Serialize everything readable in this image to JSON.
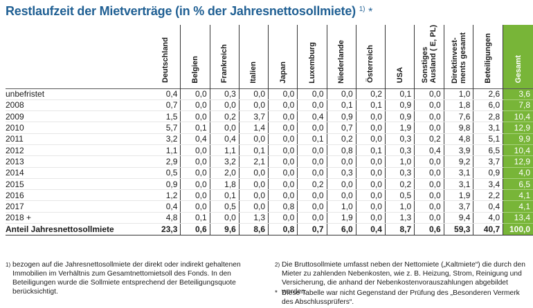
{
  "title": "Restlaufzeit der Mietverträge (in % der Jahresnettosollmiete)",
  "title_sup": "1)",
  "title_star": "*",
  "accent_color": "#78b538",
  "title_color": "#1f5f93",
  "columns": [
    "Deutschland",
    "Belgien",
    "Frankreich",
    "Italien",
    "Japan",
    "Luxemburg",
    "Niederlande",
    "Österreich",
    "USA",
    "Sonstiges|Ausland ( E, PL)",
    "Direktinvest-|ments gesamt",
    "Beteiligungen",
    "Gesamt"
  ],
  "rows": [
    {
      "label": "unbefristet",
      "values": [
        "0,4",
        "0,0",
        "0,3",
        "0,0",
        "0,0",
        "0,0",
        "0,0",
        "0,2",
        "0,1",
        "0,0",
        "1,0",
        "2,6",
        "3,6"
      ]
    },
    {
      "label": "2008",
      "values": [
        "0,7",
        "0,0",
        "0,0",
        "0,0",
        "0,0",
        "0,0",
        "0,1",
        "0,1",
        "0,9",
        "0,0",
        "1,8",
        "6,0",
        "7,8"
      ]
    },
    {
      "label": "2009",
      "values": [
        "1,5",
        "0,0",
        "0,2",
        "3,7",
        "0,0",
        "0,4",
        "0,9",
        "0,0",
        "0,9",
        "0,0",
        "7,6",
        "2,8",
        "10,4"
      ]
    },
    {
      "label": "2010",
      "values": [
        "5,7",
        "0,1",
        "0,0",
        "1,4",
        "0,0",
        "0,0",
        "0,7",
        "0,0",
        "1,9",
        "0,0",
        "9,8",
        "3,1",
        "12,9"
      ]
    },
    {
      "label": "2011",
      "values": [
        "3,2",
        "0,4",
        "0,4",
        "0,0",
        "0,0",
        "0,1",
        "0,2",
        "0,0",
        "0,3",
        "0,2",
        "4,8",
        "5,1",
        "9,9"
      ]
    },
    {
      "label": "2012",
      "values": [
        "1,1",
        "0,0",
        "1,1",
        "0,1",
        "0,0",
        "0,0",
        "0,8",
        "0,1",
        "0,3",
        "0,4",
        "3,9",
        "6,5",
        "10,4"
      ]
    },
    {
      "label": "2013",
      "values": [
        "2,9",
        "0,0",
        "3,2",
        "2,1",
        "0,0",
        "0,0",
        "0,0",
        "0,0",
        "1,0",
        "0,0",
        "9,2",
        "3,7",
        "12,9"
      ]
    },
    {
      "label": "2014",
      "values": [
        "0,5",
        "0,0",
        "2,0",
        "0,0",
        "0,0",
        "0,0",
        "0,3",
        "0,0",
        "0,3",
        "0,0",
        "3,1",
        "0,9",
        "4,0"
      ]
    },
    {
      "label": "2015",
      "values": [
        "0,9",
        "0,0",
        "1,8",
        "0,0",
        "0,0",
        "0,2",
        "0,0",
        "0,0",
        "0,2",
        "0,0",
        "3,1",
        "3,4",
        "6,5"
      ]
    },
    {
      "label": "2016",
      "values": [
        "1,2",
        "0,0",
        "0,1",
        "0,0",
        "0,0",
        "0,0",
        "0,0",
        "0,0",
        "0,5",
        "0,0",
        "1,9",
        "2,2",
        "4,1"
      ]
    },
    {
      "label": "2017",
      "values": [
        "0,4",
        "0,0",
        "0,5",
        "0,0",
        "0,8",
        "0,0",
        "1,0",
        "0,0",
        "1,0",
        "0,0",
        "3,7",
        "0,4",
        "4,1"
      ]
    },
    {
      "label": "2018 +",
      "values": [
        "4,8",
        "0,1",
        "0,0",
        "1,3",
        "0,0",
        "0,0",
        "1,9",
        "0,0",
        "1,3",
        "0,0",
        "9,4",
        "4,0",
        "13,4"
      ]
    }
  ],
  "total": {
    "label": "Anteil Jahresnettosollmiete",
    "values": [
      "23,3",
      "0,6",
      "9,6",
      "8,6",
      "0,8",
      "0,7",
      "6,0",
      "0,4",
      "8,7",
      "0,6",
      "59,3",
      "40,7",
      "100,0"
    ]
  },
  "footnotes": {
    "fn1_marker": "1)",
    "fn1_text": "bezogen auf die Jahresnettosollmiete der direkt oder indirekt gehaltenen Immobilien im Verhältnis zum Gesamtnettomietsoll des Fonds. In den Beteiligungen wurde die Sollmiete entsprechend der Beteiligungsquote berücksichtigt.",
    "fn2_marker": "2)",
    "fn2_text": "Die Bruttosollmiete umfasst neben der Nettomiete („Kaltmiete“) die durch den Mieter zu zahlenden Nebenkosten, wie z. B. Heizung, Strom, Reinigung und Versicherung, die anhand der Nebenkostenvorauszahlungen abgebildet werden.",
    "fn3_marker": "*",
    "fn3_text": "Diese Tabelle war nicht Gegenstand der Prüfung des „Besonderen Vermerk des Abschlussprüfers“."
  }
}
